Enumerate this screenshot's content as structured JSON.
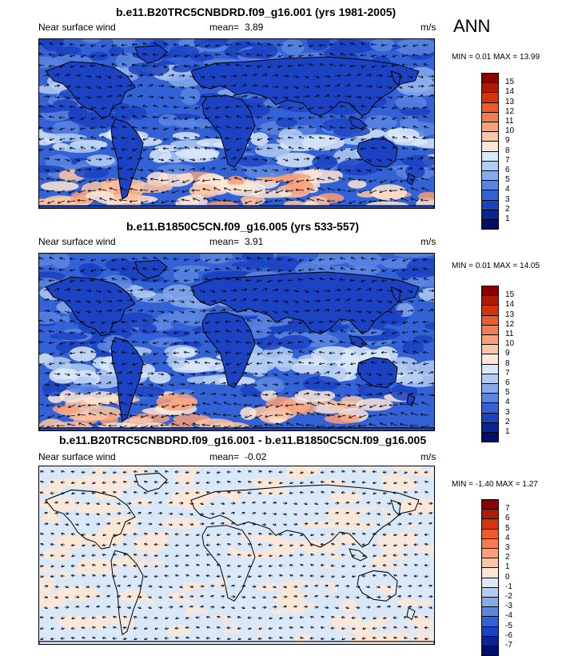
{
  "season": "ANN",
  "panels": [
    {
      "title": "b.e11.B20TRC5CNBDRD.f09_g16.001 (yrs 1981-2005)",
      "variable": "Near surface wind",
      "mean_label": "mean=",
      "mean_value": "3.89",
      "units": "m/s",
      "minmax": "MIN =   0.01 MAX =  13.99",
      "legend_labels": [
        "15",
        "14",
        "13",
        "12",
        "11",
        "10",
        "9",
        "8",
        "7",
        "6",
        "5",
        "4",
        "3",
        "2",
        "1"
      ],
      "legend_colors": [
        "#8b0000",
        "#b01a00",
        "#d8320a",
        "#ee5a2a",
        "#f47c4e",
        "#f7a07a",
        "#fac4a6",
        "#fde6d6",
        "#d9e8f8",
        "#b3cdf2",
        "#86aaea",
        "#5a86e0",
        "#3362d6",
        "#1a42c2",
        "#0a2496",
        "#000e6e"
      ],
      "kind": "wind"
    },
    {
      "title": "b.e11.B1850C5CN.f09_g16.005 (yrs 533-557)",
      "variable": "Near surface wind",
      "mean_label": "mean=",
      "mean_value": "3.91",
      "units": "m/s",
      "minmax": "MIN =   0.01 MAX =  14.05",
      "legend_labels": [
        "15",
        "14",
        "13",
        "12",
        "11",
        "10",
        "9",
        "8",
        "7",
        "6",
        "5",
        "4",
        "3",
        "2",
        "1"
      ],
      "legend_colors": [
        "#8b0000",
        "#b01a00",
        "#d8320a",
        "#ee5a2a",
        "#f47c4e",
        "#f7a07a",
        "#fac4a6",
        "#fde6d6",
        "#d9e8f8",
        "#b3cdf2",
        "#86aaea",
        "#5a86e0",
        "#3362d6",
        "#1a42c2",
        "#0a2496",
        "#000e6e"
      ],
      "kind": "wind"
    },
    {
      "title": "b.e11.B20TRC5CNBDRD.f09_g16.001 - b.e11.B1850C5CN.f09_g16.005",
      "variable": "Near surface wind",
      "mean_label": "mean=",
      "mean_value": "-0.02",
      "units": "m/s",
      "minmax": "MIN =  -1.40 MAX =   1.27",
      "legend_labels": [
        "7",
        "6",
        "5",
        "4",
        "3",
        "2",
        "1",
        "0",
        "-1",
        "-2",
        "-3",
        "-4",
        "-5",
        "-6",
        "-7"
      ],
      "legend_colors": [
        "#8b0000",
        "#b01a00",
        "#d8320a",
        "#ee5a2a",
        "#f47c4e",
        "#f7a07a",
        "#fac4a6",
        "#fde6d6",
        "#d9e8f8",
        "#b3cdf2",
        "#86aaea",
        "#5a86e0",
        "#3362d6",
        "#1a42c2",
        "#0a2496",
        "#000e6e"
      ],
      "kind": "diff"
    }
  ]
}
